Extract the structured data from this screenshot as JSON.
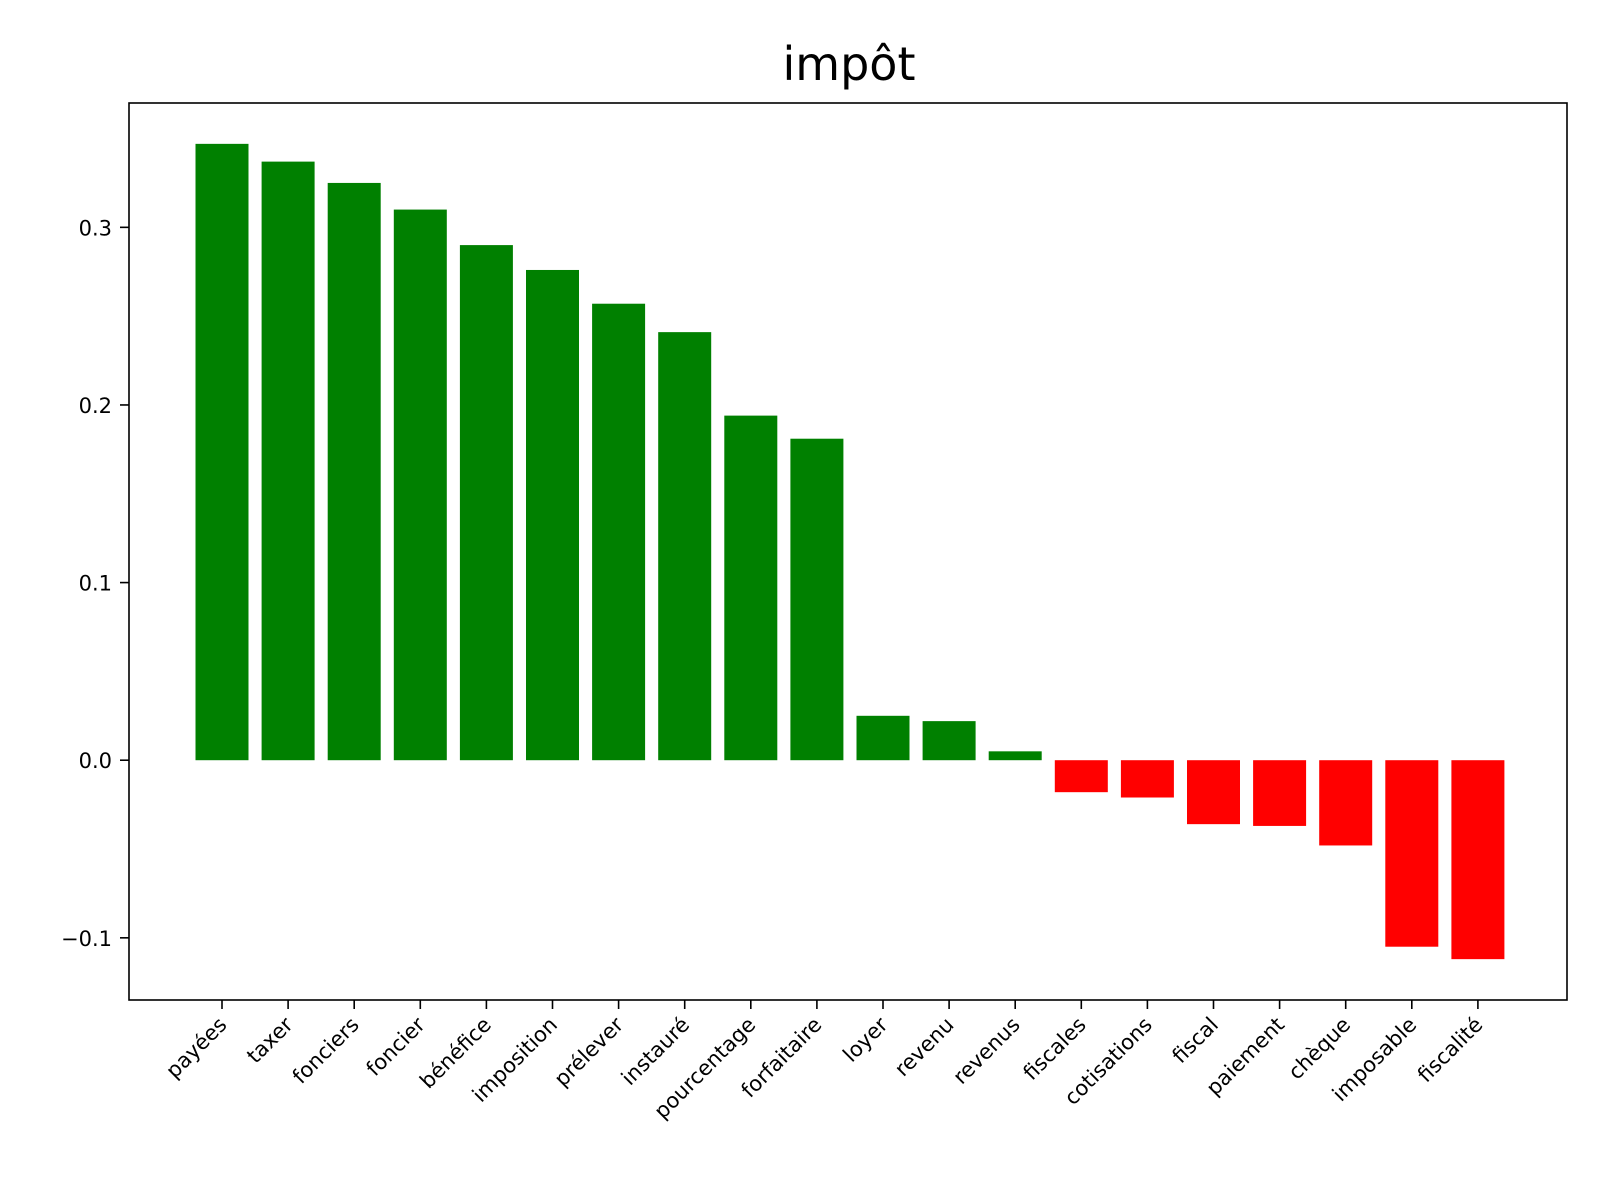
{
  "chart_data": {
    "type": "bar",
    "title": "impôt",
    "xlabel": "",
    "ylabel": "",
    "categories": [
      "payées",
      "taxer",
      "fonciers",
      "foncier",
      "bénéfice",
      "imposition",
      "prélever",
      "instauré",
      "pourcentage",
      "forfaitaire",
      "loyer",
      "revenu",
      "revenus",
      "fiscales",
      "cotisations",
      "fiscal",
      "paiement",
      "chèque",
      "imposable",
      "fiscalité"
    ],
    "values": [
      0.347,
      0.337,
      0.325,
      0.31,
      0.29,
      0.276,
      0.257,
      0.241,
      0.194,
      0.181,
      0.025,
      0.022,
      0.005,
      -0.018,
      -0.021,
      -0.036,
      -0.037,
      -0.048,
      -0.105,
      -0.112
    ],
    "ylim": [
      -0.135,
      0.37
    ],
    "yticks": [
      -0.1,
      0.0,
      0.1,
      0.2,
      0.3
    ],
    "ytick_labels": [
      "−0.1",
      "0.0",
      "0.1",
      "0.2",
      "0.3"
    ],
    "grid": false,
    "colors": {
      "positive": "#008000",
      "negative": "#ff0000"
    }
  }
}
